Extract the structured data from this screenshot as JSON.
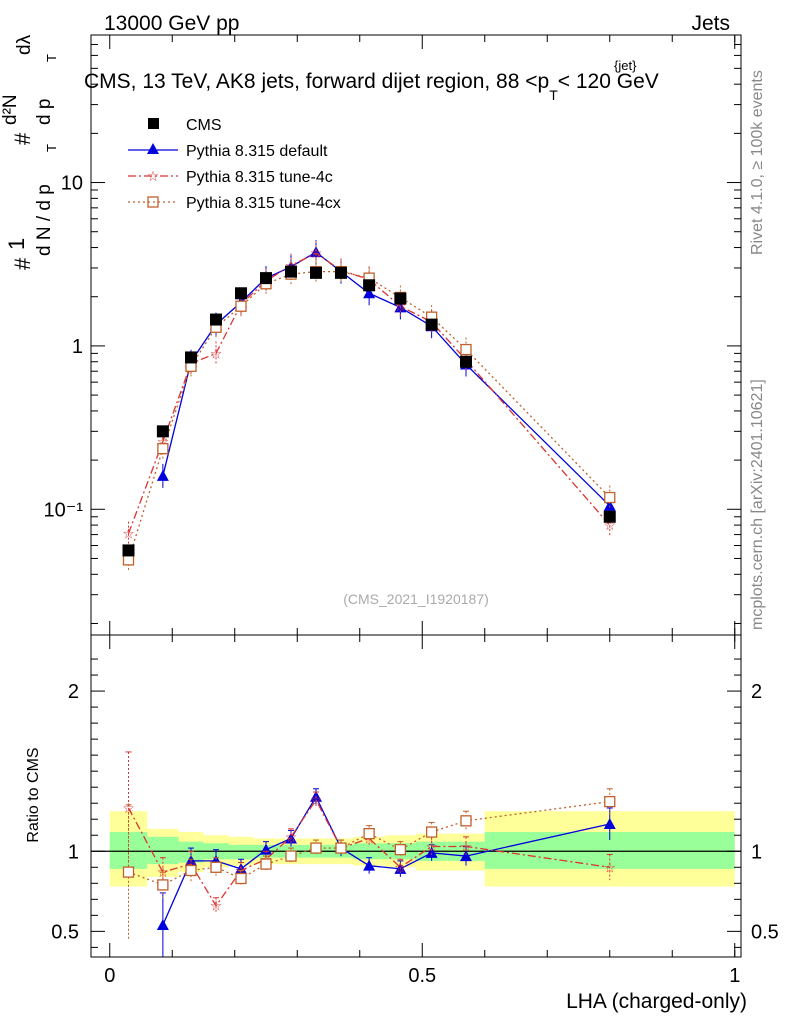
{
  "header": {
    "left": "13000 GeV pp",
    "right": "Jets",
    "title_main": "CMS, 13 TeV, AK8 jets, forward dijet region, 88 <p",
    "title_sub": "T",
    "title_sup": "{jet}",
    "title_tail": "< 120 GeV"
  },
  "side_labels": {
    "rivet": "Rivet 4.1.0, ≥ 100k events",
    "mcplots": "mcplots.cern.ch [arXiv:2401.10621]"
  },
  "analysis_id": "(CMS_2021_I1920187)",
  "yaxis_label_main": {
    "hash1": "#",
    "one": "1",
    "dN": "d N / d p",
    "T": "T",
    "hash2": "#",
    "d2N": "d²N",
    "dpT": "d p",
    "dlambda": "dλ"
  },
  "legend": [
    {
      "label": "CMS",
      "color": "#000000",
      "marker": "square-filled"
    },
    {
      "label": "Pythia 8.315 default",
      "color": "#0000dd",
      "marker": "triangle-filled"
    },
    {
      "label": "Pythia 8.315 tune-4c",
      "color": "#dd3333",
      "marker": "star"
    },
    {
      "label": "Pythia 8.315 tune-4cx",
      "color": "#c0602a",
      "marker": "square-open"
    }
  ],
  "chart_data": {
    "type": "line",
    "x_label": "LHA (charged-only)",
    "ratio_ylabel": "Ratio to CMS",
    "xlim": [
      -0.03,
      1.01
    ],
    "main_ylim_log": [
      0.017,
      80
    ],
    "ratio_ylim": [
      0.34,
      2.35
    ],
    "main_yticks": [
      "10⁻¹",
      "1",
      "10"
    ],
    "main_ytick_values": [
      0.1,
      1,
      10
    ],
    "ratio_yticks": [
      "0.5",
      "1",
      "2"
    ],
    "ratio_ytick_values": [
      0.5,
      1,
      2
    ],
    "xticks": [
      "0",
      "0.5",
      "1"
    ],
    "xtick_values": [
      0,
      0.5,
      1
    ],
    "bin_edges": [
      0.0,
      0.06,
      0.11,
      0.15,
      0.19,
      0.23,
      0.27,
      0.31,
      0.35,
      0.39,
      0.44,
      0.49,
      0.54,
      0.6,
      1.0
    ],
    "x": [
      0.03,
      0.085,
      0.13,
      0.17,
      0.21,
      0.25,
      0.29,
      0.33,
      0.37,
      0.415,
      0.465,
      0.515,
      0.57,
      0.8
    ],
    "cms": [
      0.056,
      0.3,
      0.85,
      1.45,
      2.1,
      2.6,
      2.85,
      2.8,
      2.8,
      2.35,
      1.95,
      1.35,
      0.8,
      0.09
    ],
    "ratio_band_inner": [
      [
        0.89,
        1.12
      ],
      [
        0.92,
        1.09
      ],
      [
        0.93,
        1.06
      ],
      [
        0.95,
        1.05
      ],
      [
        0.95,
        1.04
      ],
      [
        0.96,
        1.04
      ],
      [
        0.96,
        1.04
      ],
      [
        0.96,
        1.04
      ],
      [
        0.96,
        1.04
      ],
      [
        0.95,
        1.05
      ],
      [
        0.95,
        1.05
      ],
      [
        0.94,
        1.06
      ],
      [
        0.94,
        1.06
      ],
      [
        0.89,
        1.12
      ]
    ],
    "ratio_band_outer": [
      [
        0.78,
        1.25
      ],
      [
        0.84,
        1.14
      ],
      [
        0.87,
        1.12
      ],
      [
        0.9,
        1.1
      ],
      [
        0.91,
        1.09
      ],
      [
        0.92,
        1.08
      ],
      [
        0.92,
        1.08
      ],
      [
        0.92,
        1.08
      ],
      [
        0.92,
        1.08
      ],
      [
        0.91,
        1.09
      ],
      [
        0.9,
        1.1
      ],
      [
        0.88,
        1.11
      ],
      [
        0.88,
        1.11
      ],
      [
        0.78,
        1.25
      ]
    ],
    "series": [
      {
        "name": "Pythia 8.315 default",
        "color": "#0000dd",
        "marker": "triangle",
        "dash": "",
        "x": [
          0.085,
          0.13,
          0.17,
          0.21,
          0.25,
          0.29,
          0.33,
          0.37,
          0.415,
          0.465,
          0.515,
          0.57,
          0.8
        ],
        "values": [
          0.16,
          0.8,
          1.35,
          1.85,
          2.6,
          3.05,
          3.75,
          2.85,
          2.1,
          1.72,
          1.32,
          0.77,
          0.105
        ],
        "ratio": [
          0.54,
          0.94,
          0.94,
          0.89,
          1.01,
          1.08,
          1.34,
          1.02,
          0.91,
          0.89,
          0.99,
          0.97,
          1.17
        ],
        "ratio_err": [
          0.2,
          0.08,
          0.07,
          0.06,
          0.05,
          0.05,
          0.05,
          0.05,
          0.05,
          0.05,
          0.05,
          0.06,
          0.1
        ]
      },
      {
        "name": "Pythia 8.315 tune-4c",
        "color": "#dd3333",
        "marker": "star",
        "dash": "8,3,2,3",
        "x": [
          0.03,
          0.085,
          0.13,
          0.17,
          0.21,
          0.25,
          0.29,
          0.33,
          0.37,
          0.415,
          0.465,
          0.515,
          0.57,
          0.8
        ],
        "values": [
          0.071,
          0.26,
          0.78,
          0.9,
          1.8,
          2.5,
          3.1,
          3.7,
          2.9,
          2.55,
          1.75,
          1.4,
          0.82,
          0.08
        ],
        "ratio": [
          1.27,
          0.87,
          0.92,
          0.66,
          0.88,
          0.95,
          1.09,
          1.32,
          1.02,
          1.08,
          0.9,
          1.03,
          1.03,
          0.9
        ],
        "ratio_err": [
          0.35,
          0.09,
          0.08,
          0.05,
          0.05,
          0.05,
          0.05,
          0.05,
          0.05,
          0.05,
          0.05,
          0.06,
          0.06,
          0.08
        ]
      },
      {
        "name": "Pythia 8.315 tune-4cx",
        "color": "#c0602a",
        "marker": "square-open",
        "dash": "2,3",
        "x": [
          0.03,
          0.085,
          0.13,
          0.17,
          0.21,
          0.25,
          0.29,
          0.33,
          0.37,
          0.415,
          0.465,
          0.515,
          0.57,
          0.8
        ],
        "values": [
          0.049,
          0.235,
          0.75,
          1.3,
          1.75,
          2.4,
          2.75,
          2.85,
          2.85,
          2.6,
          1.98,
          1.5,
          0.95,
          0.118
        ],
        "ratio": [
          0.87,
          0.79,
          0.88,
          0.9,
          0.83,
          0.92,
          0.97,
          1.02,
          1.02,
          1.11,
          1.01,
          1.12,
          1.19,
          1.31
        ],
        "ratio_err": [
          0.42,
          0.08,
          0.07,
          0.06,
          0.05,
          0.05,
          0.05,
          0.05,
          0.05,
          0.05,
          0.05,
          0.06,
          0.06,
          0.08
        ]
      }
    ]
  }
}
